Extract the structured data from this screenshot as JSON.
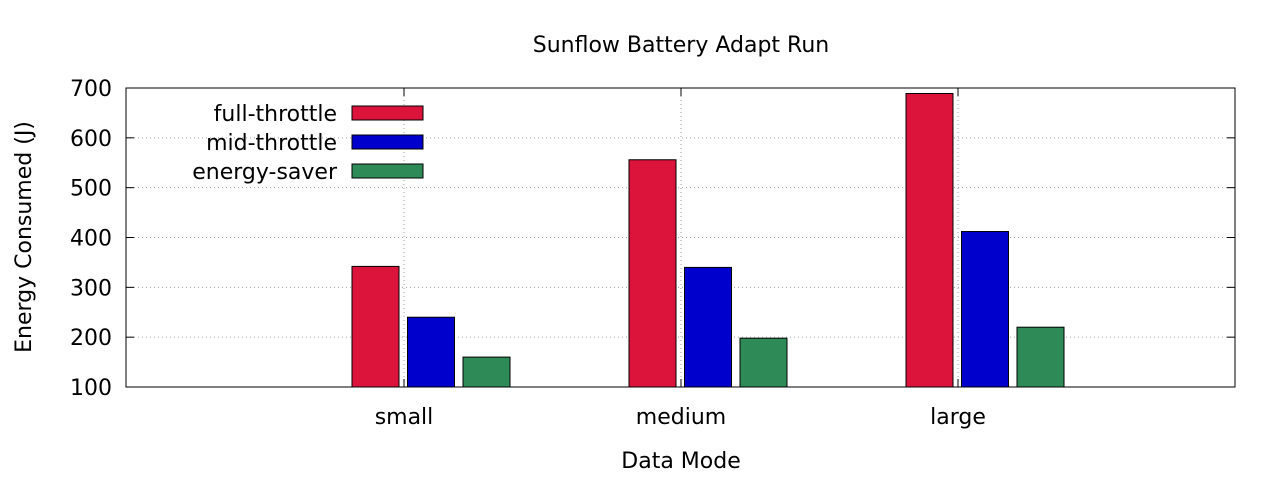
{
  "chart_data": {
    "type": "bar",
    "title": "Sunflow Battery Adapt Run",
    "xlabel": "Data Mode",
    "ylabel": "Energy Consumed (J)",
    "ylim": [
      100,
      700
    ],
    "yticks": [
      100,
      200,
      300,
      400,
      500,
      600,
      700
    ],
    "categories": [
      "small",
      "medium",
      "large"
    ],
    "grid": true,
    "legend_position": "top-left",
    "series": [
      {
        "name": "full-throttle",
        "color": "#dc143c",
        "values": [
          342,
          556,
          689
        ]
      },
      {
        "name": "mid-throttle",
        "color": "#0000cd",
        "values": [
          240,
          340,
          412
        ]
      },
      {
        "name": "energy-saver",
        "color": "#2e8b57",
        "values": [
          160,
          198,
          220
        ]
      }
    ]
  }
}
